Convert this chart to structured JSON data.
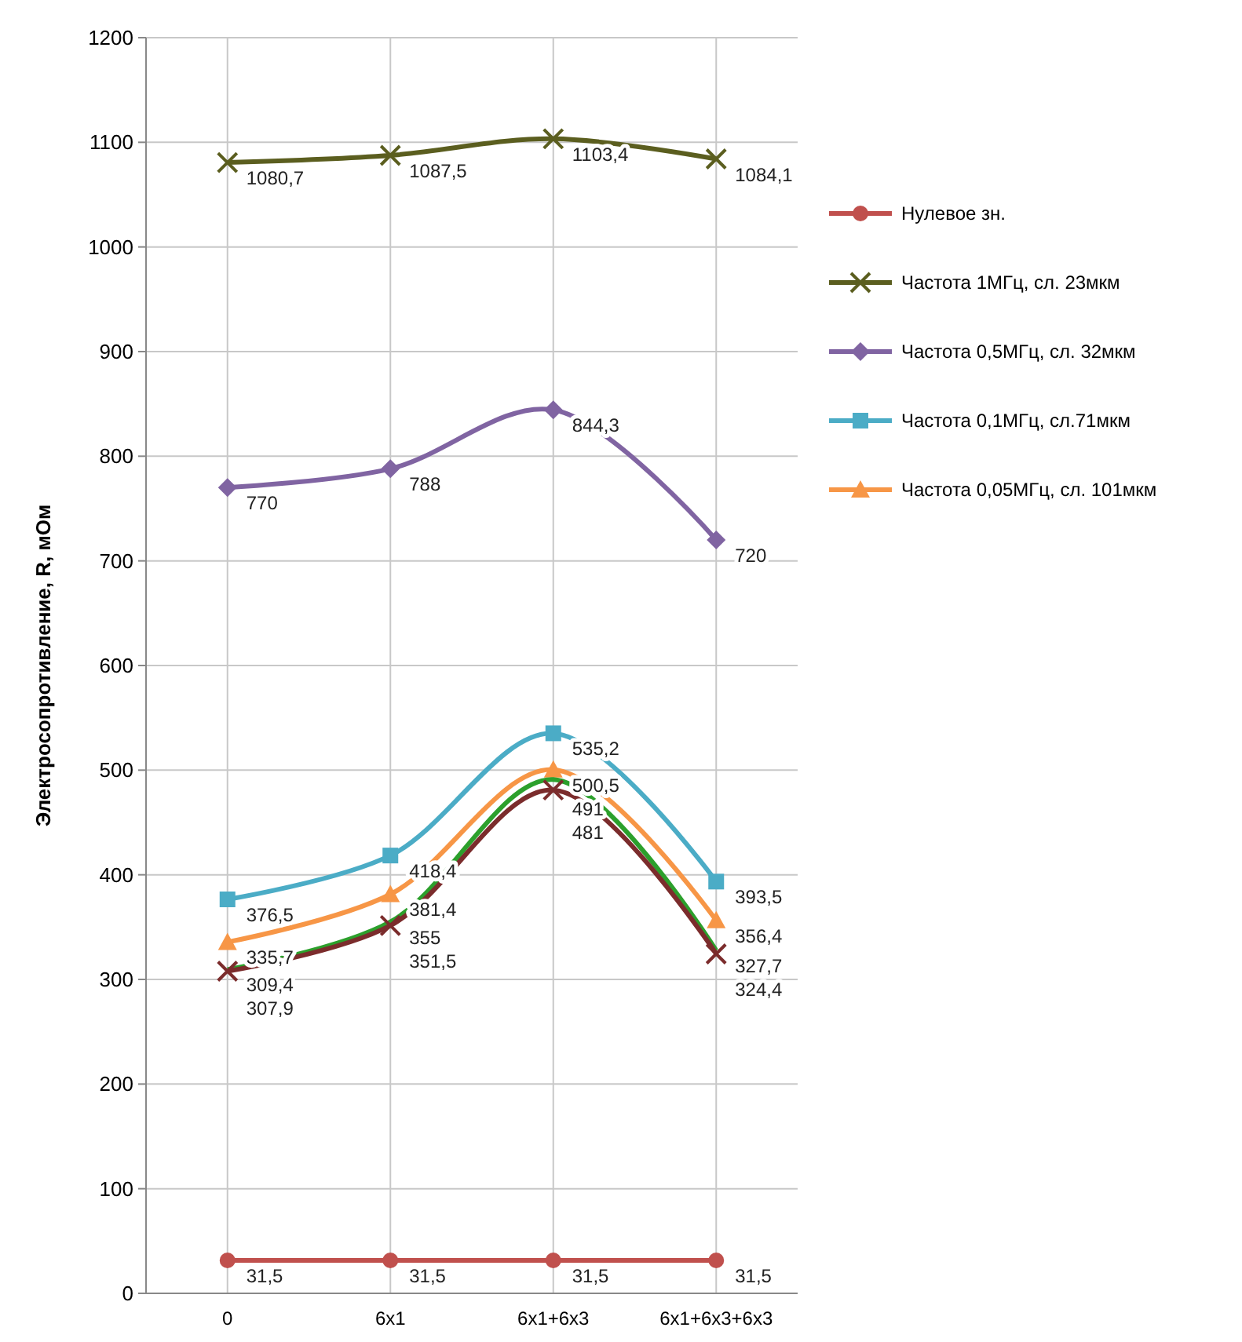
{
  "chart_data": {
    "type": "line",
    "ylabel": "Электросопротивление, R, мОм",
    "categories": [
      "0",
      "6x1",
      "6x1+6x3",
      "6x1+6x3+6x3"
    ],
    "ylim": [
      0,
      1200
    ],
    "yticks": [
      0,
      100,
      200,
      300,
      400,
      500,
      600,
      700,
      800,
      900,
      1000,
      1100,
      1200
    ],
    "grid": true,
    "legend": "right",
    "line_style": "solid",
    "series": [
      {
        "name": "Нулевое зн.",
        "color": "#c0504d",
        "marker": "circle",
        "values": [
          31.5,
          31.5,
          31.5,
          31.5
        ],
        "value_labels": [
          "31,5",
          "31,5",
          "31,5",
          "31,5"
        ]
      },
      {
        "name": "Частота 1МГц, сл. 23мкм",
        "color": "#5b5e1f",
        "marker": "cross",
        "values": [
          1080.7,
          1087.5,
          1103.4,
          1084.1
        ],
        "value_labels": [
          "1080,7",
          "1087,5",
          "1103,4",
          "1084,1"
        ]
      },
      {
        "name": "Частота 0,5МГц, сл. 32мкм",
        "color": "#8064a2",
        "marker": "diamond",
        "values": [
          770,
          788,
          844.3,
          720
        ],
        "value_labels": [
          "770",
          "788",
          "844,3",
          "720"
        ]
      },
      {
        "name": "Частота 0,1МГц, сл.71мкм",
        "color": "#4bacc6",
        "marker": "square",
        "values": [
          376.5,
          418.4,
          535.2,
          393.5
        ],
        "value_labels": [
          "376,5",
          "418,4",
          "535,2",
          "393,5"
        ]
      },
      {
        "name": "Частота 0,05МГц, сл. 101мкм",
        "color": "#f79646",
        "marker": "triangle",
        "values": [
          335.7,
          381.4,
          500.5,
          356.4
        ],
        "value_labels": [
          "335,7",
          "381,4",
          "500,5",
          "356,4"
        ]
      },
      {
        "color": "#2ca02c",
        "marker": "none",
        "values": [
          309.4,
          355,
          491,
          327.7
        ],
        "value_labels": [
          "309,4",
          "355",
          "491",
          "327,7"
        ]
      },
      {
        "color": "#7b2c2c",
        "marker": "cross",
        "values": [
          307.9,
          351.5,
          481,
          324.4
        ],
        "value_labels": [
          "307,9",
          "351,5",
          "481",
          "324,4"
        ]
      }
    ]
  }
}
